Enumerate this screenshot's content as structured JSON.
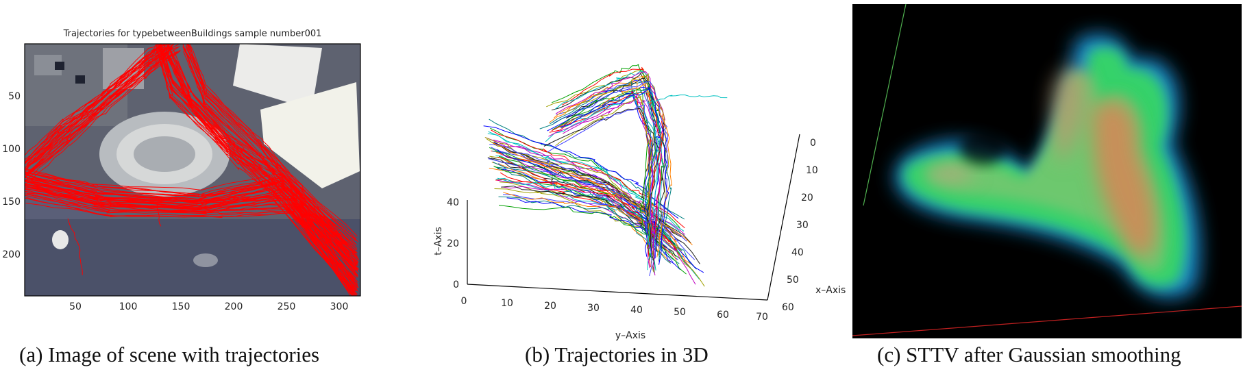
{
  "panel_a": {
    "title": "Trajectories for typebetweenBuildings sample number001",
    "caption": "(a)  Image of scene with trajectories",
    "x_ticks": [
      "50",
      "100",
      "150",
      "200",
      "250",
      "300"
    ],
    "y_ticks": [
      "50",
      "100",
      "150",
      "200"
    ]
  },
  "panel_b": {
    "caption": "(b)  Trajectories in 3D",
    "t_label": "t–Axis",
    "x_label": "x–Axis",
    "y_label": "y–Axis",
    "t_ticks": [
      "0",
      "20",
      "40"
    ],
    "y_ticks": [
      "0",
      "10",
      "20",
      "30",
      "40",
      "50",
      "60",
      "70"
    ],
    "x_ticks": [
      "0",
      "10",
      "20",
      "30",
      "40",
      "50",
      "60"
    ]
  },
  "panel_c": {
    "caption": "(c)  STTV after Gaussian smoothing"
  },
  "colors": {
    "trajectory_red": "#ff0000",
    "volume_background": "#000000"
  }
}
